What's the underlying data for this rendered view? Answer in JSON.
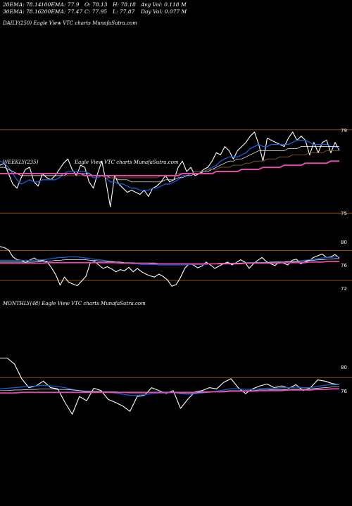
{
  "header": {
    "row1": [
      "20EMA: 78.14",
      "100EMA: 77.9",
      "O: 78.13",
      "H: 78.18",
      "Avg Vol: 0.118  M"
    ],
    "row2": [
      "30EMA: 78.16",
      "200EMA: 77.47",
      "C: 77.95",
      "L: 77.87",
      "Day Vol: 0.077 M"
    ]
  },
  "panels": {
    "daily": {
      "label": "DAILY(250) Eagle   View  VTC charts MunafaSutra.com"
    },
    "weekly": {
      "label": "WEEKLY(235)",
      "watermark": "Eagle   View  VTC charts MunafaSutra.com"
    },
    "monthly": {
      "label": "MONTHLY(48) Eagle   View  VTC charts MunafaSutra.com"
    }
  },
  "colors": {
    "background": "#000000",
    "price": "#ffffff",
    "ema_short": "#1e5bd6",
    "ema_mid": "#8a5a2a",
    "ema_long": "#e04aa8",
    "ema_long2": "#6a3ab0",
    "level_line": "#8a4a10"
  },
  "chart_data": [
    {
      "type": "line",
      "title": "DAILY(250)",
      "ylim": [
        74.5,
        79.5
      ],
      "y_ticks": [
        "79",
        "75"
      ],
      "levels": [
        79,
        75
      ],
      "series": [
        {
          "values": [
            77.3,
            77.4,
            76.9,
            76.4,
            76.2,
            76.7,
            77.1,
            77.2,
            76.5,
            76.3,
            76.9,
            76.7,
            76.6,
            76.8,
            77.1,
            77.4,
            77.6,
            77.1,
            76.8,
            77.3,
            77.2,
            76.5,
            76.2,
            76.9,
            77.5,
            76.5,
            75.3,
            76.8,
            76.4,
            76.2,
            76.0,
            76.1,
            76.0,
            75.9,
            76.1,
            75.8,
            76.2,
            76.3,
            76.5,
            76.8,
            76.5,
            76.6,
            77.2,
            77.5,
            77.0,
            77.2,
            76.8,
            76.9,
            77.1,
            77.2,
            77.5,
            77.9,
            77.8,
            78.2,
            78.0,
            77.6,
            78.0,
            78.2,
            78.4,
            78.7,
            78.9,
            78.3,
            77.5,
            78.6,
            78.5,
            78.4,
            78.3,
            78.2,
            78.6,
            78.9,
            78.5,
            78.7,
            78.5,
            77.8,
            78.4,
            77.9,
            78.4,
            78.5,
            77.9,
            78.4,
            78.0
          ]
        },
        {
          "values": [
            77.5,
            77.4,
            77.2,
            76.9,
            76.6,
            76.4,
            76.5,
            76.6,
            76.5,
            76.5,
            76.6,
            76.6,
            76.6,
            76.6,
            76.7,
            76.9,
            77.0,
            77.0,
            77.0,
            77.0,
            77.0,
            76.9,
            76.7,
            76.7,
            76.8,
            76.7,
            76.5,
            76.5,
            76.4,
            76.4,
            76.3,
            76.2,
            76.2,
            76.1,
            76.1,
            76.1,
            76.2,
            76.2,
            76.3,
            76.4,
            76.4,
            76.5,
            76.6,
            76.8,
            76.8,
            76.9,
            76.9,
            76.9,
            77.0,
            77.1,
            77.2,
            77.3,
            77.5,
            77.6,
            77.7,
            77.7,
            77.7,
            77.8,
            77.9,
            78.1,
            78.2,
            78.3,
            78.2,
            78.2,
            78.3,
            78.3,
            78.3,
            78.3,
            78.3,
            78.4,
            78.5,
            78.5,
            78.5,
            78.4,
            78.3,
            78.3,
            78.3,
            78.3,
            78.2,
            78.2,
            78.1
          ]
        },
        {
          "values": [
            77.2,
            77.2,
            77.1,
            77.0,
            76.9,
            76.8,
            76.8,
            76.8,
            76.8,
            76.8,
            76.8,
            76.8,
            76.8,
            76.8,
            76.8,
            76.8,
            76.9,
            76.9,
            76.9,
            76.9,
            76.9,
            76.9,
            76.8,
            76.8,
            76.8,
            76.8,
            76.7,
            76.7,
            76.6,
            76.6,
            76.6,
            76.5,
            76.5,
            76.5,
            76.5,
            76.5,
            76.5,
            76.5,
            76.5,
            76.6,
            76.6,
            76.6,
            76.7,
            76.7,
            76.8,
            76.8,
            76.9,
            76.9,
            77.0,
            77.0,
            77.1,
            77.2,
            77.3,
            77.4,
            77.5,
            77.5,
            77.6,
            77.6,
            77.7,
            77.8,
            77.9,
            78.0,
            78.0,
            78.0,
            78.0,
            78.0,
            78.0,
            78.0,
            78.1,
            78.1,
            78.1,
            78.2,
            78.2,
            78.2,
            78.2,
            78.2,
            78.2,
            78.2,
            78.2,
            78.2,
            78.2
          ]
        },
        {
          "values": [
            76.9,
            76.9,
            76.9,
            76.9,
            76.9,
            76.9,
            76.9,
            76.9,
            76.9,
            76.9,
            76.9,
            76.9,
            76.9,
            76.9,
            76.9,
            76.8,
            76.8,
            76.8,
            76.8,
            76.8,
            76.8,
            76.8,
            76.8,
            76.8,
            76.8,
            76.7,
            76.7,
            76.7,
            76.7,
            76.7,
            76.7,
            76.7,
            76.7,
            76.7,
            76.7,
            76.7,
            76.7,
            76.7,
            76.8,
            76.8,
            76.8,
            76.8,
            76.9,
            76.9,
            76.9,
            76.9,
            77.0,
            77.0,
            77.0,
            77.1,
            77.1,
            77.1,
            77.2,
            77.2,
            77.2,
            77.3,
            77.3,
            77.3,
            77.4,
            77.4,
            77.5,
            77.5,
            77.5,
            77.6,
            77.6,
            77.6,
            77.7,
            77.7,
            77.7,
            77.8,
            77.8,
            77.8,
            77.8,
            77.9,
            77.9,
            77.9,
            77.9,
            78.0,
            78.0,
            78.0,
            78.0
          ]
        },
        {
          "values": [
            76.9,
            76.9,
            76.9,
            76.9,
            76.9,
            76.9,
            76.9,
            76.9,
            76.9,
            76.9,
            76.9,
            76.9,
            76.9,
            76.9,
            76.9,
            76.9,
            76.9,
            76.9,
            76.9,
            76.9,
            76.8,
            76.8,
            76.8,
            76.8,
            76.8,
            76.8,
            76.8,
            76.8,
            76.8,
            76.8,
            76.8,
            76.8,
            76.8,
            76.8,
            76.8,
            76.8,
            76.8,
            76.8,
            76.8,
            76.8,
            76.8,
            76.8,
            76.8,
            76.9,
            76.9,
            76.9,
            76.9,
            76.9,
            76.9,
            76.9,
            76.9,
            77.0,
            77.0,
            77.0,
            77.0,
            77.0,
            77.0,
            77.1,
            77.1,
            77.1,
            77.1,
            77.1,
            77.2,
            77.2,
            77.2,
            77.2,
            77.2,
            77.3,
            77.3,
            77.3,
            77.3,
            77.3,
            77.4,
            77.4,
            77.4,
            77.4,
            77.4,
            77.4,
            77.5,
            77.5,
            77.5
          ]
        }
      ]
    },
    {
      "type": "line",
      "title": "WEEKLY(235)",
      "ylim": [
        71,
        81
      ],
      "y_ticks": [
        "80",
        "76",
        "72"
      ],
      "levels": [
        78.5,
        73.3
      ],
      "series": [
        {
          "values": [
            79.2,
            79.0,
            78.6,
            77.4,
            76.9,
            76.8,
            76.4,
            76.9,
            77.2,
            76.7,
            76.8,
            76.5,
            75.5,
            74.3,
            72.5,
            73.9,
            73.0,
            72.7,
            72.4,
            73.2,
            74.0,
            76.3,
            76.6,
            76.0,
            75.4,
            75.7,
            75.3,
            74.8,
            75.2,
            75.0,
            75.6,
            74.8,
            75.4,
            74.8,
            74.4,
            74.1,
            73.9,
            74.4,
            74.0,
            73.4,
            72.3,
            72.6,
            73.8,
            75.4,
            76.2,
            76.0,
            75.5,
            75.8,
            76.5,
            76.0,
            75.4,
            75.8,
            76.2,
            76.5,
            76.0,
            76.4,
            76.9,
            76.5,
            75.4,
            76.2,
            76.8,
            77.3,
            76.6,
            76.2,
            75.9,
            76.5,
            76.3,
            76.0,
            76.8,
            77.0,
            76.2,
            76.5,
            76.8,
            77.3,
            77.6,
            77.9,
            77.3,
            77.4,
            77.8,
            77.2
          ]
        },
        {
          "values": [
            76.8,
            76.8,
            76.8,
            76.8,
            76.8,
            76.8,
            76.8,
            76.8,
            76.8,
            76.9,
            76.9,
            77.0,
            77.1,
            77.2,
            77.3,
            77.3,
            77.4,
            77.4,
            77.4,
            77.3,
            77.2,
            77.1,
            77.0,
            76.9,
            76.8,
            76.7,
            76.6,
            76.5,
            76.4,
            76.3,
            76.3,
            76.2,
            76.2,
            76.1,
            76.1,
            76.1,
            76.1,
            76.0,
            76.0,
            76.0,
            76.0,
            76.0,
            76.0,
            76.0,
            76.1,
            76.1,
            76.1,
            76.1,
            76.1,
            76.2,
            76.2,
            76.2,
            76.2,
            76.2,
            76.3,
            76.3,
            76.3,
            76.3,
            76.3,
            76.4,
            76.4,
            76.4,
            76.4,
            76.4,
            76.5,
            76.5,
            76.5,
            76.6,
            76.6,
            76.6,
            76.7,
            76.8,
            76.9,
            77.0,
            77.1,
            77.2,
            77.3,
            77.3,
            77.4,
            77.4
          ]
        },
        {
          "values": [
            76.5,
            76.5,
            76.5,
            76.5,
            76.5,
            76.5,
            76.5,
            76.5,
            76.5,
            76.6,
            76.6,
            76.7,
            76.7,
            76.8,
            76.8,
            76.9,
            76.9,
            76.9,
            76.9,
            76.9,
            76.9,
            76.8,
            76.8,
            76.7,
            76.7,
            76.6,
            76.6,
            76.5,
            76.5,
            76.4,
            76.4,
            76.4,
            76.3,
            76.3,
            76.3,
            76.2,
            76.2,
            76.2,
            76.2,
            76.2,
            76.2,
            76.2,
            76.2,
            76.2,
            76.2,
            76.2,
            76.2,
            76.2,
            76.2,
            76.2,
            76.2,
            76.3,
            76.3,
            76.3,
            76.3,
            76.3,
            76.3,
            76.4,
            76.4,
            76.4,
            76.4,
            76.4,
            76.4,
            76.5,
            76.5,
            76.5,
            76.5,
            76.6,
            76.6,
            76.6,
            76.7,
            76.7,
            76.8,
            76.8,
            76.9,
            76.9,
            77.0,
            77.0,
            77.1,
            77.1
          ]
        },
        {
          "values": [
            76.3,
            76.3,
            76.3,
            76.3,
            76.3,
            76.3,
            76.3,
            76.3,
            76.3,
            76.3,
            76.3,
            76.4,
            76.4,
            76.4,
            76.4,
            76.4,
            76.4,
            76.4,
            76.4,
            76.4,
            76.4,
            76.4,
            76.4,
            76.4,
            76.4,
            76.4,
            76.4,
            76.4,
            76.3,
            76.3,
            76.3,
            76.3,
            76.3,
            76.3,
            76.3,
            76.3,
            76.3,
            76.2,
            76.2,
            76.2,
            76.2,
            76.2,
            76.2,
            76.2,
            76.2,
            76.2,
            76.2,
            76.2,
            76.2,
            76.2,
            76.2,
            76.2,
            76.2,
            76.2,
            76.2,
            76.2,
            76.2,
            76.3,
            76.3,
            76.3,
            76.3,
            76.3,
            76.3,
            76.3,
            76.3,
            76.3,
            76.4,
            76.4,
            76.4,
            76.4,
            76.4,
            76.4,
            76.5,
            76.5,
            76.5,
            76.5,
            76.6,
            76.6,
            76.6,
            76.6
          ]
        }
      ]
    },
    {
      "type": "line",
      "title": "MONTHLY(48)",
      "ylim": [
        66,
        85
      ],
      "y_ticks": [
        "80",
        "76"
      ],
      "levels": [
        78.2
      ],
      "series": [
        {
          "values": [
            81.5,
            81.5,
            80.5,
            78.0,
            76.5,
            76.8,
            77.6,
            76.5,
            76.3,
            74.0,
            72.0,
            75.0,
            74.3,
            76.4,
            76.0,
            74.5,
            74.0,
            73.4,
            72.5,
            75.0,
            75.2,
            76.5,
            76.0,
            75.5,
            76.0,
            73.0,
            74.5,
            75.8,
            76.0,
            76.5,
            76.3,
            77.4,
            78.0,
            76.5,
            75.5,
            76.3,
            76.8,
            77.1,
            76.5,
            76.8,
            76.4,
            77.0,
            76.0,
            76.5,
            77.8,
            77.6,
            77.2,
            77.0
          ]
        },
        {
          "values": [
            76.3,
            76.4,
            76.5,
            76.6,
            76.7,
            76.8,
            76.9,
            76.8,
            76.7,
            76.5,
            76.2,
            76.0,
            75.8,
            75.7,
            75.7,
            75.7,
            75.6,
            75.4,
            75.2,
            75.2,
            75.3,
            75.5,
            75.6,
            75.6,
            75.7,
            75.5,
            75.4,
            75.5,
            75.6,
            75.8,
            75.9,
            76.1,
            76.3,
            76.3,
            76.2,
            76.2,
            76.3,
            76.4,
            76.4,
            76.5,
            76.5,
            76.6,
            76.5,
            76.5,
            76.7,
            76.9,
            77.0,
            77.0
          ]
        },
        {
          "values": [
            76.0,
            76.0,
            76.1,
            76.1,
            76.2,
            76.2,
            76.3,
            76.3,
            76.2,
            76.2,
            76.1,
            76.0,
            75.9,
            75.9,
            75.8,
            75.8,
            75.8,
            75.7,
            75.6,
            75.6,
            75.6,
            75.7,
            75.7,
            75.7,
            75.7,
            75.6,
            75.6,
            75.6,
            75.7,
            75.7,
            75.8,
            75.9,
            76.0,
            76.0,
            76.0,
            76.0,
            76.1,
            76.1,
            76.2,
            76.2,
            76.2,
            76.3,
            76.3,
            76.3,
            76.4,
            76.5,
            76.6,
            76.6
          ]
        },
        {
          "values": [
            75.6,
            75.6,
            75.6,
            75.7,
            75.7,
            75.7,
            75.7,
            75.7,
            75.7,
            75.7,
            75.7,
            75.7,
            75.7,
            75.7,
            75.7,
            75.7,
            75.7,
            75.7,
            75.7,
            75.7,
            75.7,
            75.7,
            75.7,
            75.7,
            75.7,
            75.7,
            75.7,
            75.7,
            75.8,
            75.8,
            75.8,
            75.8,
            75.9,
            75.9,
            75.9,
            75.9,
            76.0,
            76.0,
            76.0,
            76.0,
            76.1,
            76.1,
            76.1,
            76.1,
            76.2,
            76.2,
            76.3,
            76.3
          ]
        }
      ]
    }
  ]
}
